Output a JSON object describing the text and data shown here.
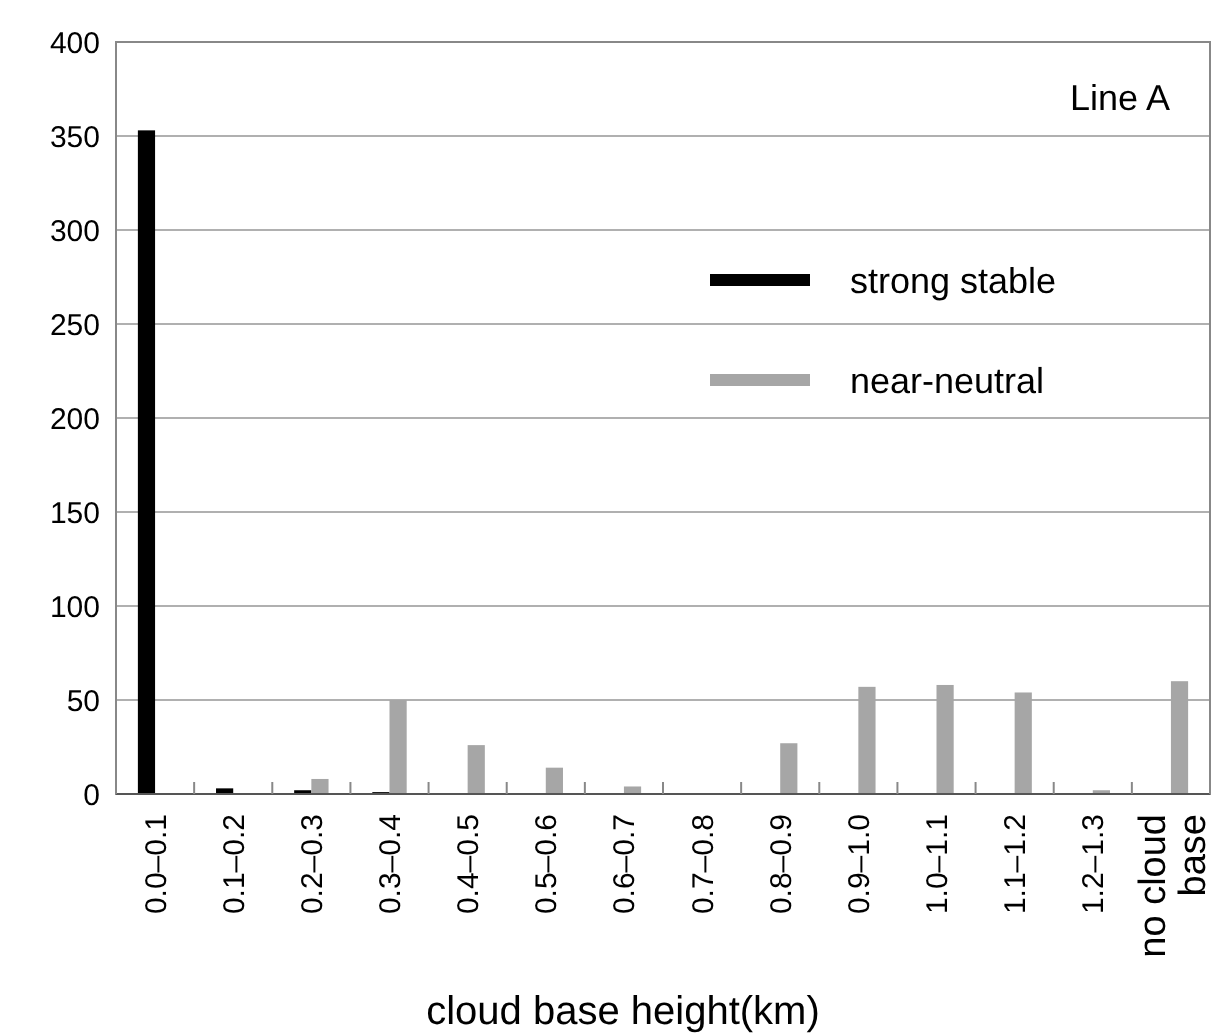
{
  "chart_data": {
    "type": "bar",
    "xlabel": "cloud base height(km)",
    "annotations": [
      "Line A"
    ],
    "categories": [
      "0.0–0.1",
      "0.1–0.2",
      "0.2–0.3",
      "0.3–0.4",
      "0.4–0.5",
      "0.5–0.6",
      "0.6–0.7",
      "0.7–0.8",
      "0.8–0.9",
      "0.9–1.0",
      "1.0–1.1",
      "1.1–1.2",
      "1.2–1.3",
      "no cloud base"
    ],
    "series": [
      {
        "name": "strong stable",
        "color": "#000000",
        "values": [
          353,
          3,
          2,
          1,
          0,
          0,
          0,
          0,
          0,
          0,
          0,
          0,
          0,
          0
        ]
      },
      {
        "name": "near-neutral",
        "color": "#a6a6a6",
        "values": [
          0,
          0,
          8,
          50,
          26,
          14,
          4,
          0,
          27,
          57,
          58,
          54,
          2,
          60
        ]
      }
    ],
    "ylim": [
      0,
      400
    ],
    "yticks": [
      0,
      50,
      100,
      150,
      200,
      250,
      300,
      350,
      400
    ],
    "grid": "y",
    "legend": "top right"
  }
}
